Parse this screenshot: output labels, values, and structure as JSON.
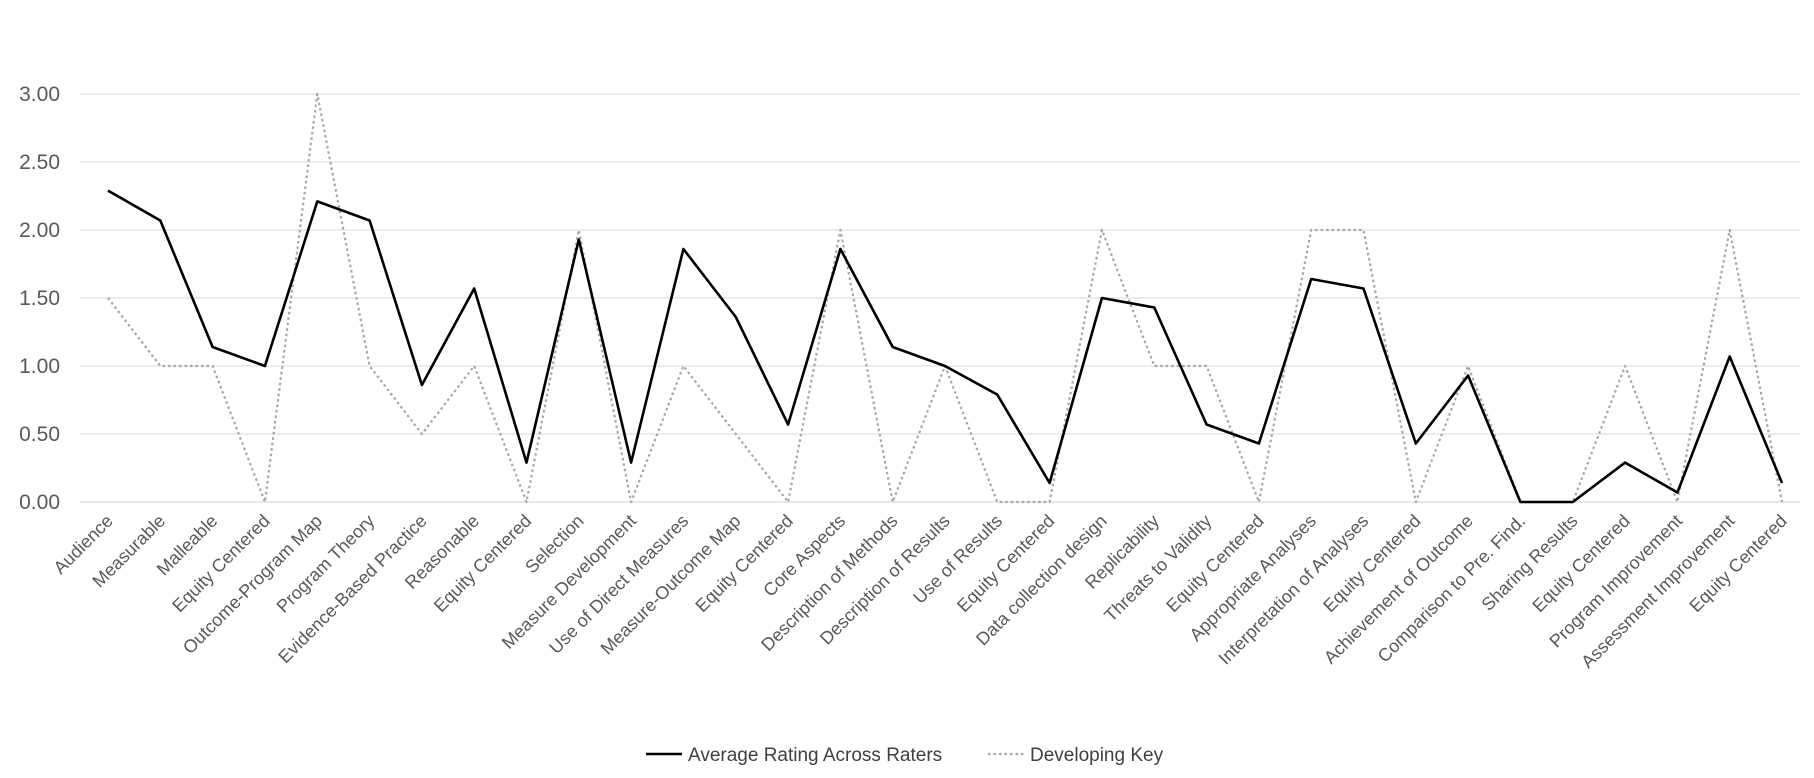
{
  "chart_data": {
    "type": "line",
    "title": "",
    "xlabel": "",
    "ylabel": "",
    "ylim": [
      0,
      3
    ],
    "yticks": [
      "0.00",
      "0.50",
      "1.00",
      "1.50",
      "2.00",
      "2.50",
      "3.00"
    ],
    "grid": true,
    "legend_position": "bottom",
    "categories": [
      "Audience",
      "Measurable",
      "Malleable",
      "Equity Centered",
      "Outcome-Program Map",
      "Program Theory",
      "Evidence-Based Practice",
      "Reasonable",
      "Equity Centered",
      "Selection",
      "Measure Development",
      "Use of Direct Measures",
      "Measure-Outcome Map",
      "Equity Centered",
      "Core Aspects",
      "Description of Methods",
      "Description of Results",
      "Use of Results",
      "Equity Centered",
      "Data collection design",
      "Replicability",
      "Threats to Validity",
      "Equity Centered",
      "Appropriate Analyses",
      "Interpretation of Analyses",
      "Equity Centered",
      "Achievement of Outcome",
      "Comparison to Pre. Find.",
      "Sharing Results",
      "Equity Centered",
      "Program Improvement",
      "Assessment Improvement",
      "Equity Centered"
    ],
    "series": [
      {
        "name": "Average Rating Across Raters",
        "color": "#000000",
        "style": "solid",
        "values": [
          2.29,
          2.07,
          1.14,
          1.0,
          2.21,
          2.07,
          0.86,
          1.57,
          0.29,
          1.93,
          0.29,
          1.86,
          1.36,
          0.57,
          1.86,
          1.14,
          1.0,
          0.79,
          0.14,
          1.5,
          1.43,
          0.57,
          0.43,
          1.64,
          1.57,
          0.43,
          0.93,
          0.0,
          0.0,
          0.29,
          0.07,
          1.07,
          0.14
        ]
      },
      {
        "name": "Developing Key",
        "color": "#a6a6a6",
        "style": "dotted",
        "values": [
          1.5,
          1.0,
          1.0,
          0.0,
          3.0,
          1.0,
          0.5,
          1.0,
          0.0,
          2.0,
          0.0,
          1.0,
          0.5,
          0.0,
          2.0,
          0.0,
          1.0,
          0.0,
          0.0,
          2.0,
          1.0,
          1.0,
          0.0,
          2.0,
          2.0,
          0.0,
          1.0,
          0.0,
          0.0,
          1.0,
          0.0,
          2.0,
          0.0
        ]
      }
    ]
  }
}
